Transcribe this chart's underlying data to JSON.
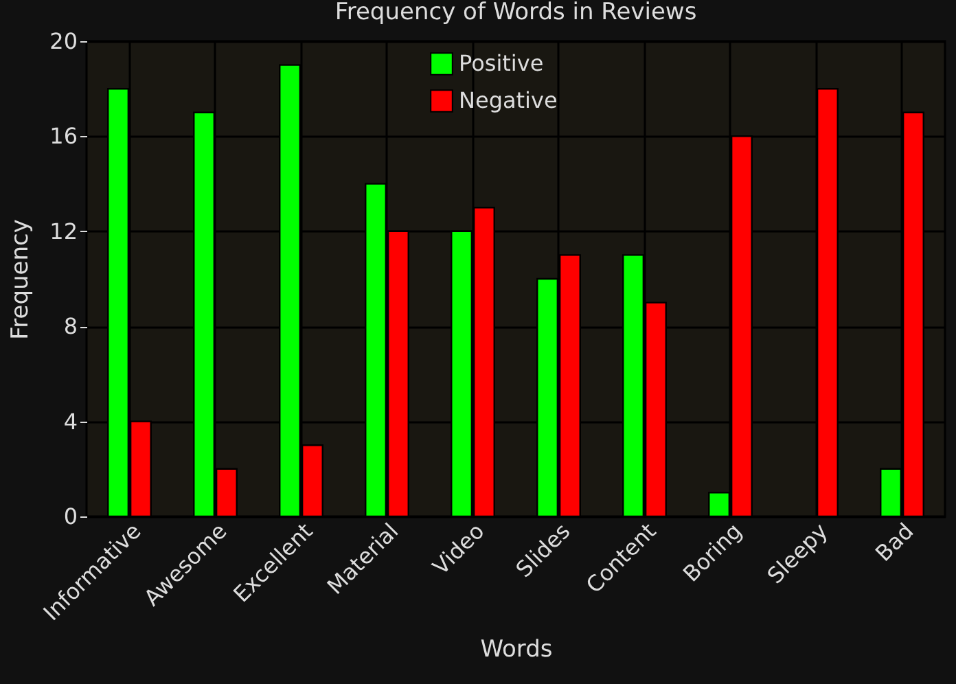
{
  "chart_data": {
    "type": "bar",
    "title": "Frequency of Words in Reviews",
    "xlabel": "Words",
    "ylabel": "Frequency",
    "categories": [
      "Informative",
      "Awesome",
      "Excellent",
      "Material",
      "Video",
      "Slides",
      "Content",
      "Boring",
      "Sleepy",
      "Bad"
    ],
    "series": [
      {
        "name": "Positive",
        "color": "#00ff00",
        "values": [
          18,
          17,
          19,
          14,
          12,
          10,
          11,
          1,
          null,
          2
        ]
      },
      {
        "name": "Negative",
        "color": "#ff0000",
        "values": [
          4,
          2,
          3,
          12,
          13,
          11,
          9,
          16,
          18,
          17
        ]
      }
    ],
    "ylim": [
      0,
      20
    ],
    "yticks": [
      0,
      4,
      8,
      12,
      16,
      20
    ],
    "grid": true,
    "legend": "top"
  }
}
